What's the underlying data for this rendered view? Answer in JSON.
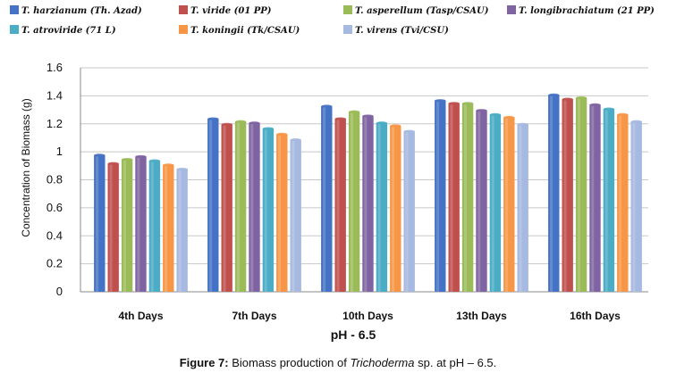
{
  "chart_data": {
    "type": "bar",
    "title": "",
    "xlabel": "pH - 6.5",
    "ylabel": "Concentration of Biomass (g)",
    "ylim": [
      0,
      1.6
    ],
    "yticks": [
      "0",
      "0.2",
      "0.4",
      "0.6",
      "0.8",
      "1",
      "1.2",
      "1.4",
      "1.6"
    ],
    "grid": true,
    "legend_position": "top",
    "categories": [
      "4th Days",
      "7th Days",
      "10th Days",
      "13th Days",
      "16th Days"
    ],
    "series": [
      {
        "name": "T. harzianum (Th. Azad)",
        "color": "#4472c4",
        "values": [
          0.98,
          1.24,
          1.33,
          1.37,
          1.41
        ]
      },
      {
        "name": "T. viride (01 PP)",
        "color": "#c0504d",
        "values": [
          0.92,
          1.2,
          1.24,
          1.35,
          1.38
        ]
      },
      {
        "name": "T. asperellum (Tasp/CSAU)",
        "color": "#9bbb59",
        "values": [
          0.95,
          1.22,
          1.29,
          1.35,
          1.39
        ]
      },
      {
        "name": "T. longibrachiatum (21 PP)",
        "color": "#8064a2",
        "values": [
          0.97,
          1.21,
          1.26,
          1.3,
          1.34
        ]
      },
      {
        "name": "T. atroviride (71 L)",
        "color": "#4bacc6",
        "values": [
          0.94,
          1.17,
          1.21,
          1.27,
          1.31
        ]
      },
      {
        "name": "T. koningii (Tk/CSAU)",
        "color": "#f79646",
        "values": [
          0.91,
          1.13,
          1.19,
          1.25,
          1.27
        ]
      },
      {
        "name": "T. virens (Tvi/CSU)",
        "color": "#a6b9e0",
        "values": [
          0.88,
          1.09,
          1.15,
          1.2,
          1.22
        ]
      }
    ]
  },
  "caption": {
    "prefix": "Figure 7:",
    "text_before": " Biomass production of ",
    "italic": "Trichoderma",
    "text_after": " sp. at pH – 6.5."
  }
}
